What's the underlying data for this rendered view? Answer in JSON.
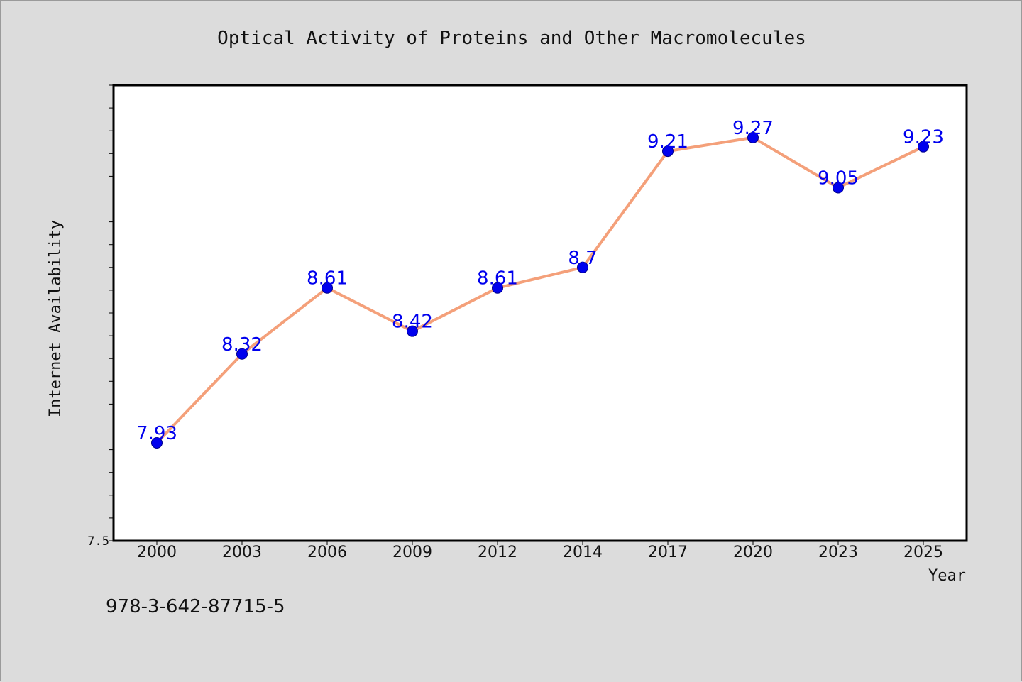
{
  "chart_data": {
    "type": "line",
    "title": "Optical Activity of Proteins and Other Macromolecules",
    "xlabel": "Year",
    "ylabel": "Internet Availability",
    "categories": [
      "2000",
      "2003",
      "2006",
      "2009",
      "2012",
      "2014",
      "2017",
      "2020",
      "2023",
      "2025"
    ],
    "series": [
      {
        "values": [
          7.93,
          8.32,
          8.61,
          8.42,
          8.61,
          8.7,
          9.21,
          9.27,
          9.05,
          9.23
        ]
      }
    ],
    "data_labels": [
      "7.93",
      "8.32",
      "8.61",
      "8.42",
      "8.61",
      "8.7",
      "9.21",
      "9.27",
      "9.05",
      "9.23"
    ],
    "ylim": [
      7.5,
      9.5
    ],
    "y_tick_labels": [
      "7.5"
    ],
    "grid": false,
    "legend": "none"
  },
  "footer_text": "978-3-642-87715-5",
  "colors": {
    "background": "#dcdcdc",
    "plot_background": "#ffffff",
    "line": "#f4a07a",
    "marker": "#0000ee",
    "data_label": "#0000ee"
  }
}
